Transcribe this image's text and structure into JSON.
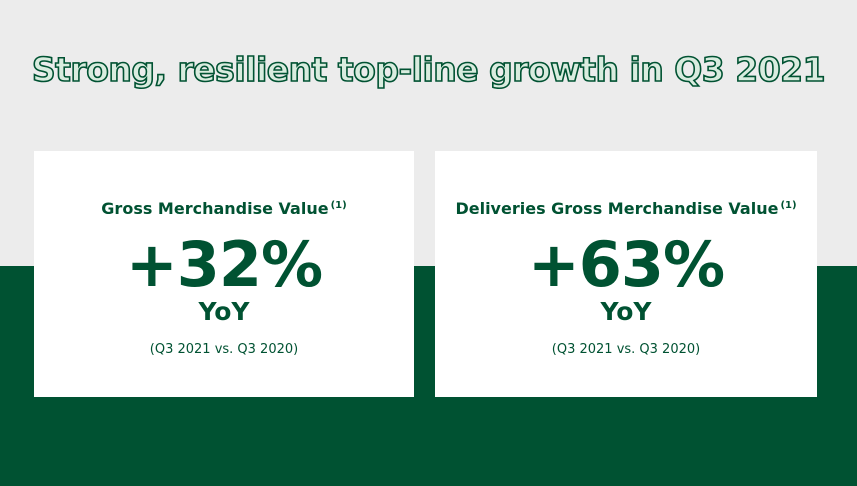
{
  "header": {
    "title": "Strong, resilient top-line growth in Q3 2021"
  },
  "cards": [
    {
      "title": "Gross Merchandise Value",
      "footnote": "(1)",
      "value": "+32%",
      "unit": "YoY",
      "note": "(Q3 2021 vs. Q3 2020)"
    },
    {
      "title": "Deliveries Gross Merchandise Value",
      "footnote": "(1)",
      "value": "+63%",
      "unit": "YoY",
      "note": "(Q3 2021 vs. Q3 2020)"
    }
  ]
}
